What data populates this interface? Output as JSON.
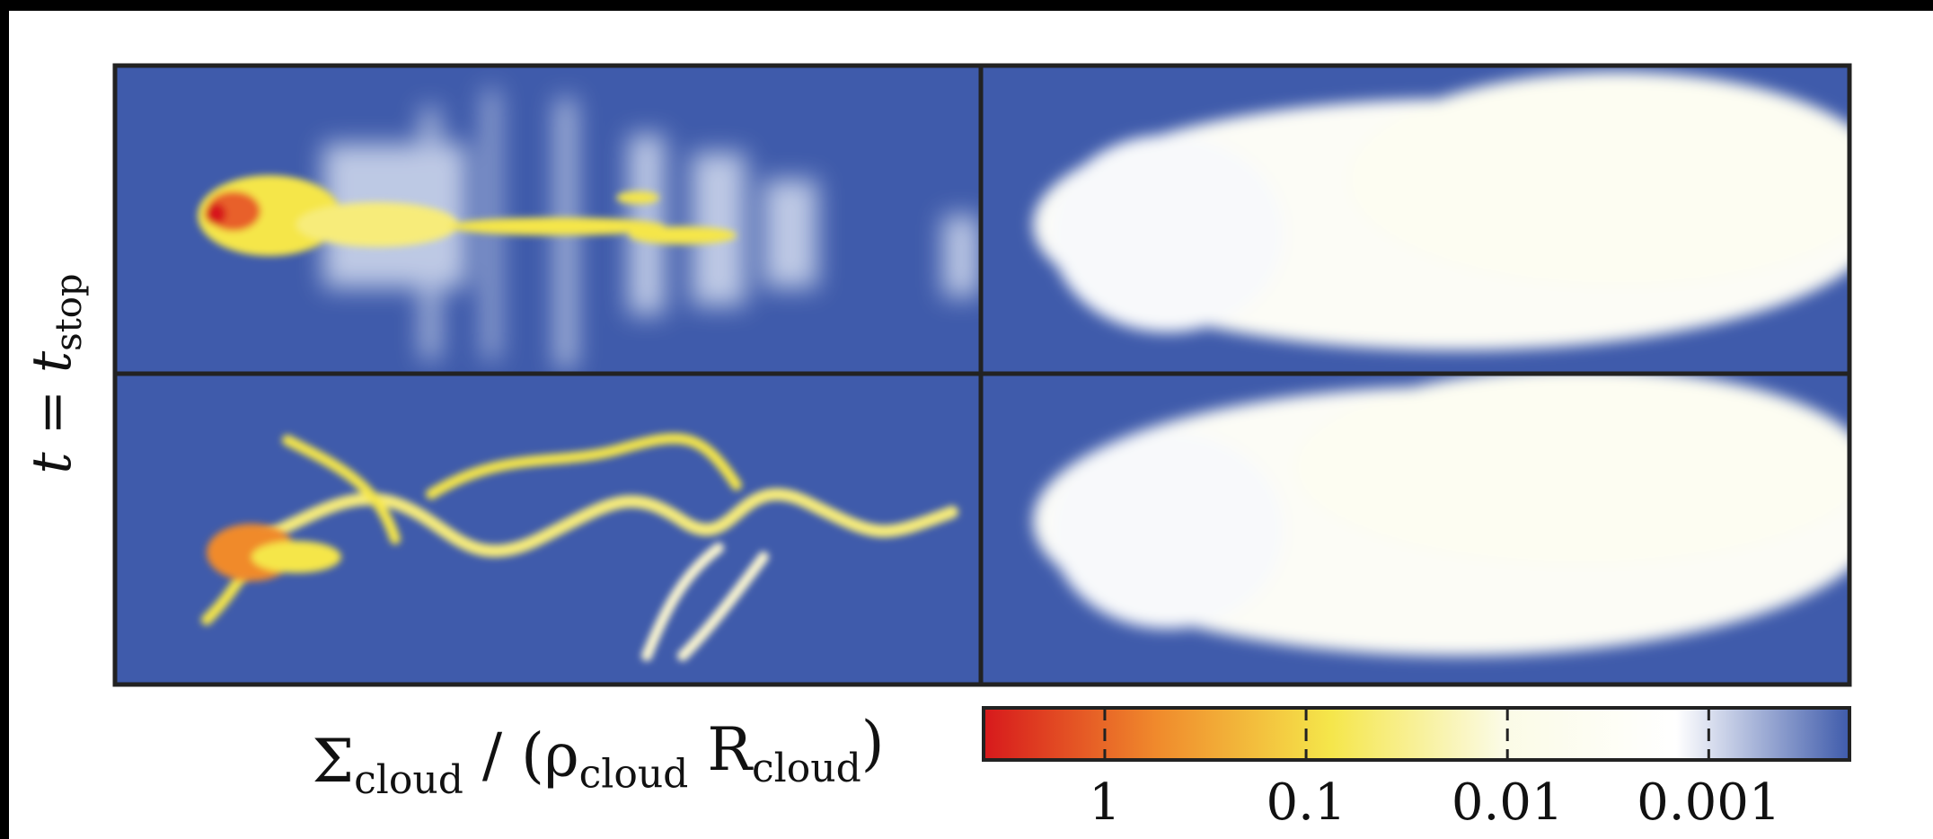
{
  "chart_data": {
    "type": "image-panels",
    "ylabel": [
      "t = t",
      "stop"
    ],
    "colorbar": {
      "label": [
        "Σ",
        "cloud",
        " / (ρ",
        "cloud",
        " R",
        "cloud",
        ")"
      ],
      "scale": "log",
      "clim": [
        4,
        0.0002
      ],
      "ticks": [
        1,
        0.1,
        0.01,
        0.001
      ],
      "colors": [
        "#d7191c",
        "#f08a2c",
        "#f5e64a",
        "#fbfbe6",
        "#ffffff",
        "#3f5bab"
      ]
    }
  }
}
